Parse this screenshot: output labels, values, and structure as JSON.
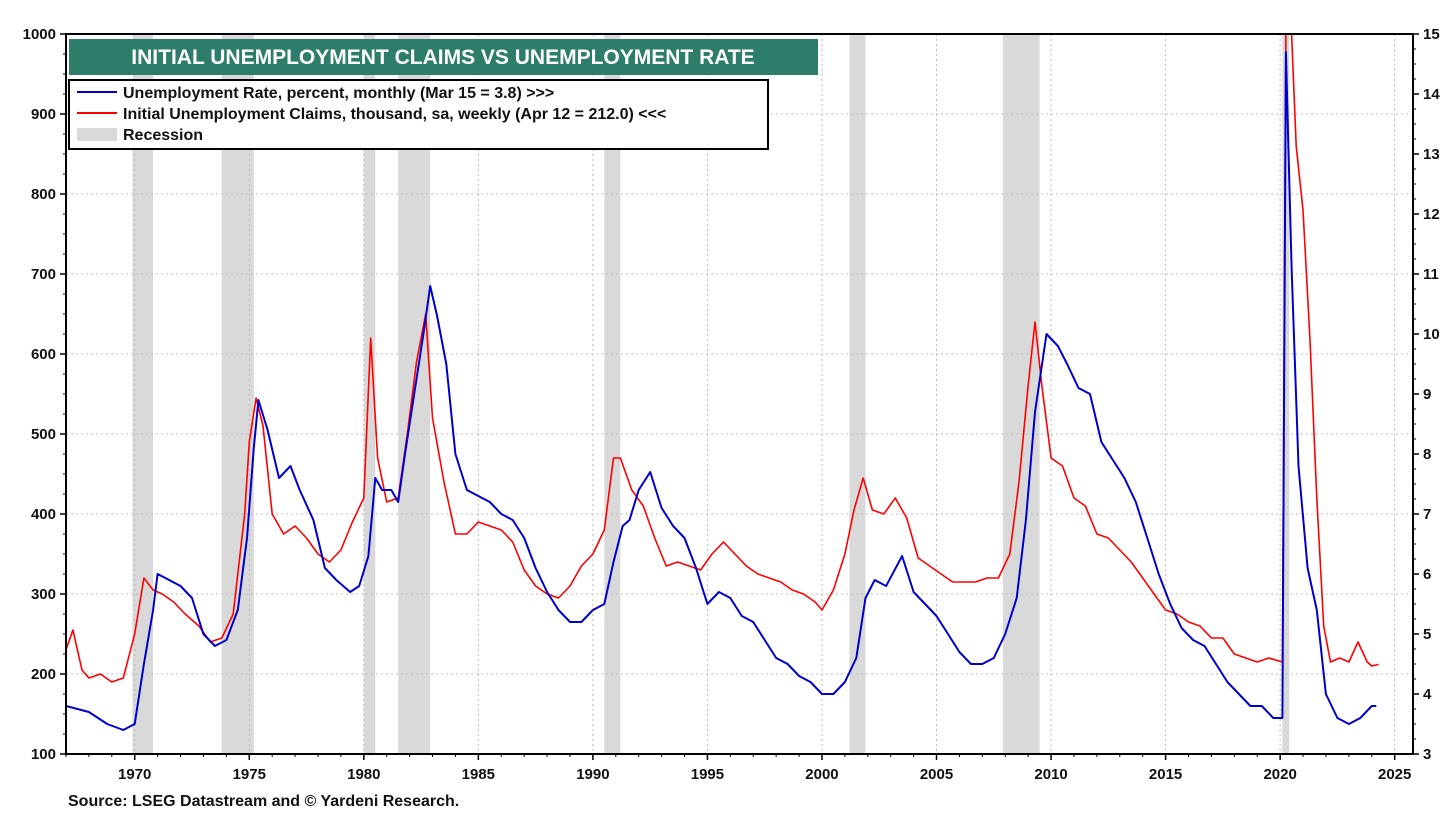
{
  "chart_data": {
    "type": "line",
    "title": "INITIAL UNEMPLOYMENT CLAIMS VS UNEMPLOYMENT RATE",
    "source": "Source: LSEG Datastream and © Yardeni Research.",
    "x_range": [
      1967.0,
      2025.8
    ],
    "x_ticks": [
      "1970",
      "1975",
      "1980",
      "1985",
      "1990",
      "1995",
      "2000",
      "2005",
      "2010",
      "2015",
      "2020",
      "2025"
    ],
    "left_axis": {
      "range": [
        100,
        1000
      ],
      "ticks": [
        "100",
        "200",
        "300",
        "400",
        "500",
        "600",
        "700",
        "800",
        "900",
        "1000"
      ]
    },
    "right_axis": {
      "range": [
        3,
        15
      ],
      "ticks": [
        "3",
        "4",
        "5",
        "6",
        "7",
        "8",
        "9",
        "10",
        "11",
        "12",
        "13",
        "14",
        "15"
      ]
    },
    "grid": true,
    "legend_position": "top-left",
    "recessions": [
      [
        1969.9,
        1970.8
      ],
      [
        1973.8,
        1975.2
      ],
      [
        1980.0,
        1980.5
      ],
      [
        1981.5,
        1982.9
      ],
      [
        1990.5,
        1991.2
      ],
      [
        2001.2,
        2001.9
      ],
      [
        2007.9,
        2009.5
      ],
      [
        2020.1,
        2020.4
      ]
    ],
    "series": [
      {
        "name": "Unemployment Rate, percent, monthly (Mar 15 = 3.8) >>>",
        "axis": "right",
        "color": "#0000cc",
        "points": [
          [
            1967.0,
            3.8
          ],
          [
            1968.0,
            3.7
          ],
          [
            1968.8,
            3.5
          ],
          [
            1969.5,
            3.4
          ],
          [
            1970.0,
            3.5
          ],
          [
            1970.4,
            4.5
          ],
          [
            1970.8,
            5.4
          ],
          [
            1971.0,
            6.0
          ],
          [
            1971.5,
            5.9
          ],
          [
            1972.0,
            5.8
          ],
          [
            1972.5,
            5.6
          ],
          [
            1973.0,
            5.0
          ],
          [
            1973.5,
            4.8
          ],
          [
            1974.0,
            4.9
          ],
          [
            1974.5,
            5.4
          ],
          [
            1974.9,
            6.6
          ],
          [
            1975.2,
            8.1
          ],
          [
            1975.4,
            8.9
          ],
          [
            1975.8,
            8.4
          ],
          [
            1976.3,
            7.6
          ],
          [
            1976.8,
            7.8
          ],
          [
            1977.2,
            7.4
          ],
          [
            1977.8,
            6.9
          ],
          [
            1978.3,
            6.1
          ],
          [
            1978.8,
            5.9
          ],
          [
            1979.4,
            5.7
          ],
          [
            1979.8,
            5.8
          ],
          [
            1980.2,
            6.3
          ],
          [
            1980.5,
            7.6
          ],
          [
            1980.8,
            7.4
          ],
          [
            1981.2,
            7.4
          ],
          [
            1981.5,
            7.2
          ],
          [
            1981.8,
            8.0
          ],
          [
            1982.2,
            9.0
          ],
          [
            1982.6,
            10.0
          ],
          [
            1982.9,
            10.8
          ],
          [
            1983.2,
            10.3
          ],
          [
            1983.6,
            9.5
          ],
          [
            1984.0,
            8.0
          ],
          [
            1984.5,
            7.4
          ],
          [
            1985.0,
            7.3
          ],
          [
            1985.5,
            7.2
          ],
          [
            1986.0,
            7.0
          ],
          [
            1986.5,
            6.9
          ],
          [
            1987.0,
            6.6
          ],
          [
            1987.5,
            6.1
          ],
          [
            1988.0,
            5.7
          ],
          [
            1988.5,
            5.4
          ],
          [
            1989.0,
            5.2
          ],
          [
            1989.5,
            5.2
          ],
          [
            1990.0,
            5.4
          ],
          [
            1990.5,
            5.5
          ],
          [
            1990.9,
            6.2
          ],
          [
            1991.3,
            6.8
          ],
          [
            1991.6,
            6.9
          ],
          [
            1992.0,
            7.4
          ],
          [
            1992.5,
            7.7
          ],
          [
            1993.0,
            7.1
          ],
          [
            1993.5,
            6.8
          ],
          [
            1994.0,
            6.6
          ],
          [
            1994.5,
            6.1
          ],
          [
            1995.0,
            5.5
          ],
          [
            1995.5,
            5.7
          ],
          [
            1996.0,
            5.6
          ],
          [
            1996.5,
            5.3
          ],
          [
            1997.0,
            5.2
          ],
          [
            1997.5,
            4.9
          ],
          [
            1998.0,
            4.6
          ],
          [
            1998.5,
            4.5
          ],
          [
            1999.0,
            4.3
          ],
          [
            1999.5,
            4.2
          ],
          [
            2000.0,
            4.0
          ],
          [
            2000.5,
            4.0
          ],
          [
            2001.0,
            4.2
          ],
          [
            2001.5,
            4.6
          ],
          [
            2001.9,
            5.6
          ],
          [
            2002.3,
            5.9
          ],
          [
            2002.8,
            5.8
          ],
          [
            2003.5,
            6.3
          ],
          [
            2004.0,
            5.7
          ],
          [
            2004.5,
            5.5
          ],
          [
            2005.0,
            5.3
          ],
          [
            2005.5,
            5.0
          ],
          [
            2006.0,
            4.7
          ],
          [
            2006.5,
            4.5
          ],
          [
            2007.0,
            4.5
          ],
          [
            2007.5,
            4.6
          ],
          [
            2008.0,
            5.0
          ],
          [
            2008.5,
            5.6
          ],
          [
            2008.9,
            6.9
          ],
          [
            2009.3,
            8.7
          ],
          [
            2009.8,
            10.0
          ],
          [
            2010.3,
            9.8
          ],
          [
            2010.7,
            9.5
          ],
          [
            2011.2,
            9.1
          ],
          [
            2011.7,
            9.0
          ],
          [
            2012.2,
            8.2
          ],
          [
            2012.7,
            7.9
          ],
          [
            2013.2,
            7.6
          ],
          [
            2013.7,
            7.2
          ],
          [
            2014.2,
            6.6
          ],
          [
            2014.7,
            6.0
          ],
          [
            2015.2,
            5.5
          ],
          [
            2015.7,
            5.1
          ],
          [
            2016.2,
            4.9
          ],
          [
            2016.7,
            4.8
          ],
          [
            2017.2,
            4.5
          ],
          [
            2017.7,
            4.2
          ],
          [
            2018.2,
            4.0
          ],
          [
            2018.7,
            3.8
          ],
          [
            2019.2,
            3.8
          ],
          [
            2019.7,
            3.6
          ],
          [
            2020.1,
            3.6
          ],
          [
            2020.25,
            14.7
          ],
          [
            2020.5,
            11.1
          ],
          [
            2020.8,
            7.8
          ],
          [
            2021.2,
            6.1
          ],
          [
            2021.6,
            5.4
          ],
          [
            2022.0,
            4.0
          ],
          [
            2022.5,
            3.6
          ],
          [
            2023.0,
            3.5
          ],
          [
            2023.5,
            3.6
          ],
          [
            2024.0,
            3.8
          ],
          [
            2024.2,
            3.8
          ]
        ]
      },
      {
        "name": "Initial Unemployment Claims, thousand, sa, weekly (Apr 12 = 212.0) <<<",
        "axis": "left",
        "color": "#ff0000",
        "points": [
          [
            1967.0,
            230
          ],
          [
            1967.3,
            255
          ],
          [
            1967.7,
            205
          ],
          [
            1968.0,
            195
          ],
          [
            1968.5,
            200
          ],
          [
            1969.0,
            190
          ],
          [
            1969.5,
            195
          ],
          [
            1970.0,
            250
          ],
          [
            1970.4,
            320
          ],
          [
            1970.8,
            305
          ],
          [
            1971.2,
            300
          ],
          [
            1971.7,
            290
          ],
          [
            1972.2,
            275
          ],
          [
            1972.8,
            260
          ],
          [
            1973.3,
            240
          ],
          [
            1973.8,
            245
          ],
          [
            1974.3,
            275
          ],
          [
            1974.8,
            400
          ],
          [
            1975.0,
            490
          ],
          [
            1975.3,
            545
          ],
          [
            1975.6,
            510
          ],
          [
            1976.0,
            400
          ],
          [
            1976.5,
            375
          ],
          [
            1977.0,
            385
          ],
          [
            1977.5,
            370
          ],
          [
            1978.0,
            350
          ],
          [
            1978.5,
            340
          ],
          [
            1979.0,
            355
          ],
          [
            1979.5,
            390
          ],
          [
            1980.0,
            420
          ],
          [
            1980.3,
            620
          ],
          [
            1980.6,
            470
          ],
          [
            1981.0,
            415
          ],
          [
            1981.5,
            420
          ],
          [
            1981.9,
            500
          ],
          [
            1982.3,
            590
          ],
          [
            1982.7,
            650
          ],
          [
            1983.0,
            520
          ],
          [
            1983.5,
            440
          ],
          [
            1984.0,
            375
          ],
          [
            1984.5,
            375
          ],
          [
            1985.0,
            390
          ],
          [
            1985.5,
            385
          ],
          [
            1986.0,
            380
          ],
          [
            1986.5,
            365
          ],
          [
            1987.0,
            330
          ],
          [
            1987.5,
            310
          ],
          [
            1988.0,
            300
          ],
          [
            1988.5,
            295
          ],
          [
            1989.0,
            310
          ],
          [
            1989.5,
            335
          ],
          [
            1990.0,
            350
          ],
          [
            1990.5,
            380
          ],
          [
            1990.9,
            470
          ],
          [
            1991.2,
            470
          ],
          [
            1991.7,
            430
          ],
          [
            1992.2,
            410
          ],
          [
            1992.7,
            370
          ],
          [
            1993.2,
            335
          ],
          [
            1993.7,
            340
          ],
          [
            1994.2,
            335
          ],
          [
            1994.7,
            330
          ],
          [
            1995.2,
            350
          ],
          [
            1995.7,
            365
          ],
          [
            1996.2,
            350
          ],
          [
            1996.7,
            335
          ],
          [
            1997.2,
            325
          ],
          [
            1997.7,
            320
          ],
          [
            1998.2,
            315
          ],
          [
            1998.7,
            305
          ],
          [
            1999.2,
            300
          ],
          [
            1999.7,
            290
          ],
          [
            2000.0,
            280
          ],
          [
            2000.5,
            305
          ],
          [
            2001.0,
            350
          ],
          [
            2001.4,
            405
          ],
          [
            2001.8,
            445
          ],
          [
            2002.2,
            405
          ],
          [
            2002.7,
            400
          ],
          [
            2003.2,
            420
          ],
          [
            2003.7,
            395
          ],
          [
            2004.2,
            345
          ],
          [
            2004.7,
            335
          ],
          [
            2005.2,
            325
          ],
          [
            2005.7,
            315
          ],
          [
            2006.2,
            315
          ],
          [
            2006.7,
            315
          ],
          [
            2007.2,
            320
          ],
          [
            2007.7,
            320
          ],
          [
            2008.2,
            350
          ],
          [
            2008.6,
            440
          ],
          [
            2009.0,
            560
          ],
          [
            2009.3,
            640
          ],
          [
            2009.6,
            560
          ],
          [
            2010.0,
            470
          ],
          [
            2010.5,
            460
          ],
          [
            2011.0,
            420
          ],
          [
            2011.5,
            410
          ],
          [
            2012.0,
            375
          ],
          [
            2012.5,
            370
          ],
          [
            2013.0,
            355
          ],
          [
            2013.5,
            340
          ],
          [
            2014.0,
            320
          ],
          [
            2014.5,
            300
          ],
          [
            2015.0,
            280
          ],
          [
            2015.5,
            275
          ],
          [
            2016.0,
            265
          ],
          [
            2016.5,
            260
          ],
          [
            2017.0,
            245
          ],
          [
            2017.5,
            245
          ],
          [
            2018.0,
            225
          ],
          [
            2018.5,
            220
          ],
          [
            2019.0,
            215
          ],
          [
            2019.5,
            220
          ],
          [
            2020.1,
            215
          ],
          [
            2020.25,
            1000
          ],
          [
            2020.5,
            1000
          ],
          [
            2020.7,
            860
          ],
          [
            2021.0,
            780
          ],
          [
            2021.3,
            620
          ],
          [
            2021.6,
            420
          ],
          [
            2021.9,
            260
          ],
          [
            2022.2,
            215
          ],
          [
            2022.6,
            220
          ],
          [
            2023.0,
            215
          ],
          [
            2023.4,
            240
          ],
          [
            2023.8,
            215
          ],
          [
            2024.0,
            210
          ],
          [
            2024.3,
            212
          ]
        ]
      }
    ]
  }
}
